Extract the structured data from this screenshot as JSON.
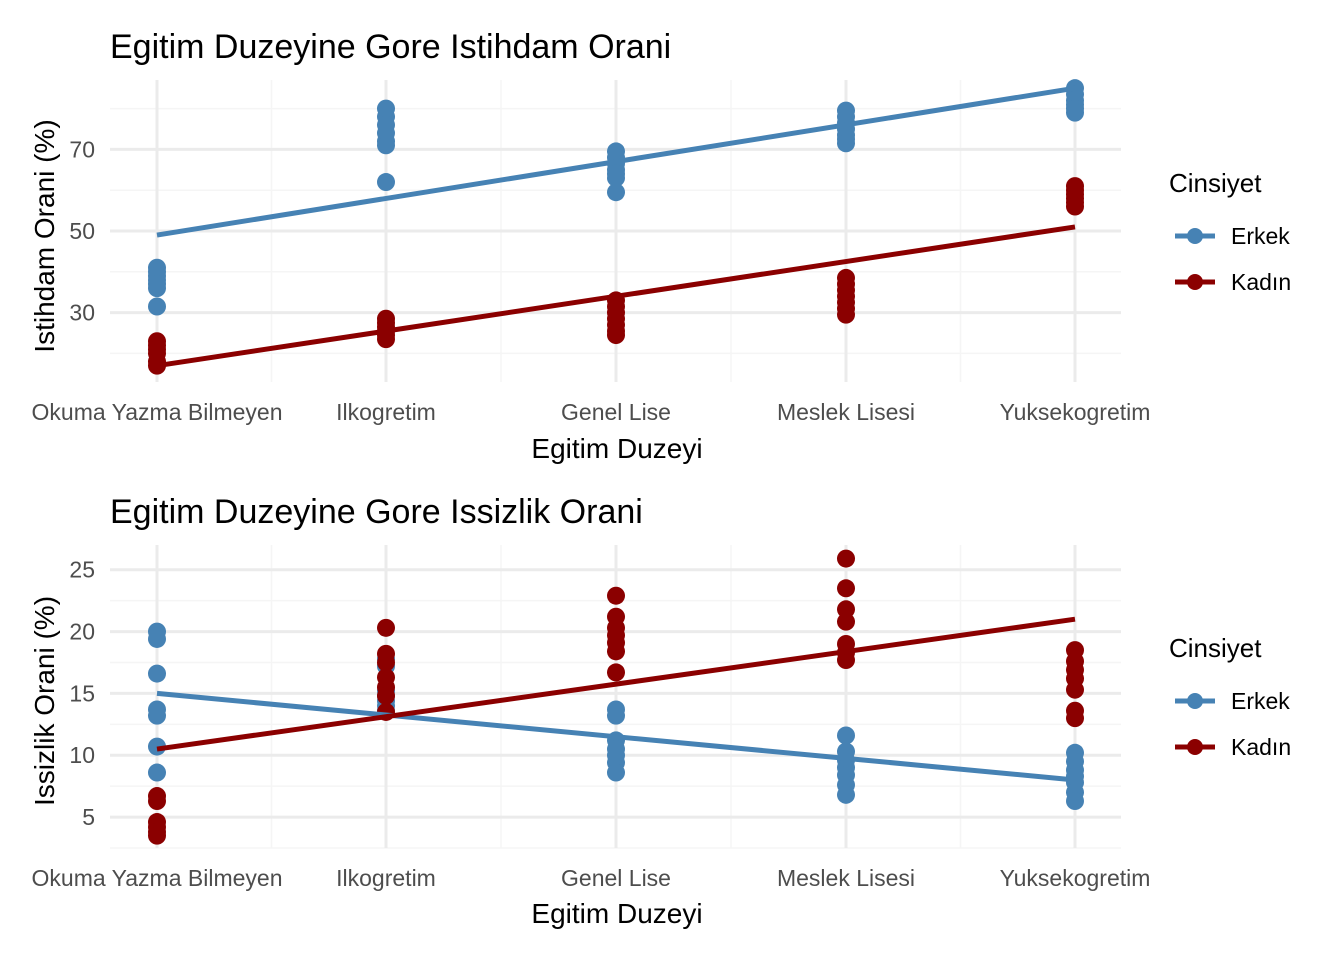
{
  "colors": {
    "Erkek": "#4682B4",
    "Kadın": "#8B0000",
    "grid_major": "#ebebeb",
    "grid_minor": "#f5f5f5"
  },
  "legend": {
    "title": "Cinsiyet",
    "items": [
      "Erkek",
      "Kadın"
    ]
  },
  "chart_data": [
    {
      "type": "scatter",
      "title": "Egitim Duzeyine Gore Istihdam Orani",
      "xlabel": "Egitim Duzeyi",
      "ylabel": "Istihdam Orani (%)",
      "categories": [
        "Okuma Yazma Bilmeyen",
        "Ilkogretim",
        "Genel Lise",
        "Meslek Lisesi",
        "Yuksekogretim"
      ],
      "ylim": [
        13,
        87
      ],
      "yticks": [
        30,
        50,
        70
      ],
      "grid": true,
      "legend_position": "right",
      "series": [
        {
          "name": "Erkek",
          "points": [
            [
              0,
              41
            ],
            [
              0,
              40
            ],
            [
              0,
              39
            ],
            [
              0,
              38
            ],
            [
              0,
              37
            ],
            [
              0,
              36
            ],
            [
              0,
              31.5
            ],
            [
              1,
              80
            ],
            [
              1,
              78
            ],
            [
              1,
              76
            ],
            [
              1,
              74
            ],
            [
              1,
              72
            ],
            [
              1,
              71
            ],
            [
              1,
              62
            ],
            [
              2,
              69.5
            ],
            [
              2,
              68
            ],
            [
              2,
              66.5
            ],
            [
              2,
              65
            ],
            [
              2,
              64
            ],
            [
              2,
              63
            ],
            [
              2,
              59.5
            ],
            [
              3,
              79.5
            ],
            [
              3,
              78
            ],
            [
              3,
              76.5
            ],
            [
              3,
              75
            ],
            [
              3,
              73.5
            ],
            [
              3,
              72.5
            ],
            [
              3,
              71.5
            ],
            [
              4,
              85
            ],
            [
              4,
              83.5
            ],
            [
              4,
              82
            ],
            [
              4,
              81
            ],
            [
              4,
              80
            ],
            [
              4,
              79
            ]
          ],
          "trend": [
            [
              0,
              49
            ],
            [
              4,
              85
            ]
          ]
        },
        {
          "name": "Kadın",
          "points": [
            [
              0,
              23
            ],
            [
              0,
              22
            ],
            [
              0,
              21
            ],
            [
              0,
              20
            ],
            [
              0,
              18
            ],
            [
              0,
              17
            ],
            [
              1,
              28.5
            ],
            [
              1,
              27.5
            ],
            [
              1,
              26.5
            ],
            [
              1,
              25.5
            ],
            [
              1,
              24.5
            ],
            [
              1,
              23.5
            ],
            [
              2,
              33
            ],
            [
              2,
              31.5
            ],
            [
              2,
              30
            ],
            [
              2,
              28.5
            ],
            [
              2,
              27
            ],
            [
              2,
              25.5
            ],
            [
              2,
              24.5
            ],
            [
              3,
              38.5
            ],
            [
              3,
              37
            ],
            [
              3,
              35.5
            ],
            [
              3,
              34
            ],
            [
              3,
              32.5
            ],
            [
              3,
              31
            ],
            [
              3,
              29.5
            ],
            [
              4,
              61
            ],
            [
              4,
              60
            ],
            [
              4,
              59
            ],
            [
              4,
              58
            ],
            [
              4,
              57
            ],
            [
              4,
              56
            ]
          ],
          "trend": [
            [
              0,
              17
            ],
            [
              4,
              51
            ]
          ]
        }
      ]
    },
    {
      "type": "scatter",
      "title": "Egitim Duzeyine Gore Issizlik Orani",
      "xlabel": "Egitim Duzeyi",
      "ylabel": "Issizlik Orani (%)",
      "categories": [
        "Okuma Yazma Bilmeyen",
        "Ilkogretim",
        "Genel Lise",
        "Meslek Lisesi",
        "Yuksekogretim"
      ],
      "ylim": [
        2.5,
        27
      ],
      "yticks": [
        5,
        10,
        15,
        20,
        25
      ],
      "grid": true,
      "legend_position": "right",
      "series": [
        {
          "name": "Erkek",
          "points": [
            [
              0,
              20
            ],
            [
              0,
              19.4
            ],
            [
              0,
              16.6
            ],
            [
              0,
              13.7
            ],
            [
              0,
              13.2
            ],
            [
              0,
              10.7
            ],
            [
              0,
              8.6
            ],
            [
              1,
              17.8
            ],
            [
              1,
              17.2
            ],
            [
              1,
              15.2
            ],
            [
              1,
              14.8
            ],
            [
              1,
              14.4
            ],
            [
              1,
              14
            ],
            [
              1,
              13.6
            ],
            [
              2,
              13.7
            ],
            [
              2,
              13.2
            ],
            [
              2,
              11.2
            ],
            [
              2,
              10.5
            ],
            [
              2,
              10
            ],
            [
              2,
              9.4
            ],
            [
              2,
              8.6
            ],
            [
              3,
              11.6
            ],
            [
              3,
              10.3
            ],
            [
              3,
              9.6
            ],
            [
              3,
              9
            ],
            [
              3,
              8.4
            ],
            [
              3,
              7.6
            ],
            [
              3,
              6.8
            ],
            [
              4,
              10.2
            ],
            [
              4,
              9.5
            ],
            [
              4,
              8.8
            ],
            [
              4,
              8.3
            ],
            [
              4,
              7.8
            ],
            [
              4,
              7
            ],
            [
              4,
              6.3
            ]
          ],
          "trend": [
            [
              0,
              15
            ],
            [
              4,
              8
            ]
          ]
        },
        {
          "name": "Kadın",
          "points": [
            [
              0,
              6.7
            ],
            [
              0,
              6.3
            ],
            [
              0,
              4.6
            ],
            [
              0,
              4.2
            ],
            [
              0,
              3.8
            ],
            [
              0,
              3.5
            ],
            [
              1,
              20.3
            ],
            [
              1,
              18.2
            ],
            [
              1,
              17.5
            ],
            [
              1,
              16.3
            ],
            [
              1,
              15.5
            ],
            [
              1,
              14.8
            ],
            [
              1,
              13.5
            ],
            [
              2,
              22.9
            ],
            [
              2,
              21.2
            ],
            [
              2,
              20.3
            ],
            [
              2,
              19.7
            ],
            [
              2,
              19.1
            ],
            [
              2,
              18.4
            ],
            [
              2,
              16.7
            ],
            [
              3,
              25.9
            ],
            [
              3,
              23.5
            ],
            [
              3,
              21.8
            ],
            [
              3,
              20.8
            ],
            [
              3,
              19
            ],
            [
              3,
              18.3
            ],
            [
              3,
              17.7
            ],
            [
              4,
              18.5
            ],
            [
              4,
              17.6
            ],
            [
              4,
              16.9
            ],
            [
              4,
              16.2
            ],
            [
              4,
              15.3
            ],
            [
              4,
              13.6
            ],
            [
              4,
              13
            ]
          ],
          "trend": [
            [
              0,
              10.5
            ],
            [
              4,
              21
            ]
          ]
        }
      ]
    }
  ]
}
